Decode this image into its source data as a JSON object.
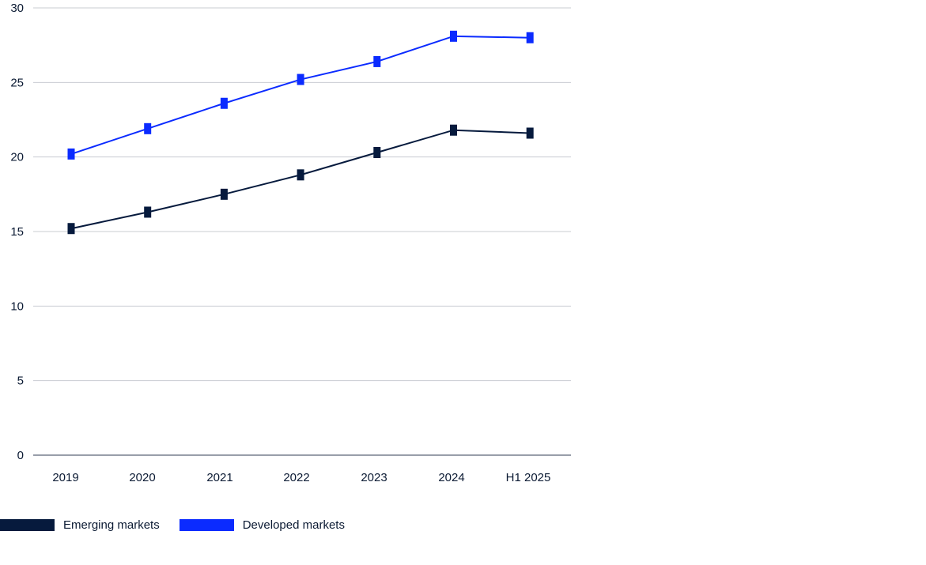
{
  "chart_data": {
    "type": "line",
    "title": "",
    "xlabel": "",
    "ylabel": "",
    "categories": [
      "2019",
      "2020",
      "2021",
      "2022",
      "2023",
      "2024",
      "H1 2025"
    ],
    "ylim": [
      0,
      30
    ],
    "yticks": [
      "0",
      "5",
      "10",
      "15",
      "20",
      "25",
      "30"
    ],
    "grid": true,
    "legend_position": "bottom-left",
    "series": [
      {
        "name": "Emerging markets",
        "color": "#061a3d",
        "values": [
          15.2,
          16.3,
          17.5,
          18.8,
          20.3,
          21.8,
          21.6
        ]
      },
      {
        "name": "Developed markets",
        "color": "#0b2bff",
        "values": [
          20.2,
          21.9,
          23.6,
          25.2,
          26.4,
          28.1,
          28.0
        ]
      }
    ]
  }
}
